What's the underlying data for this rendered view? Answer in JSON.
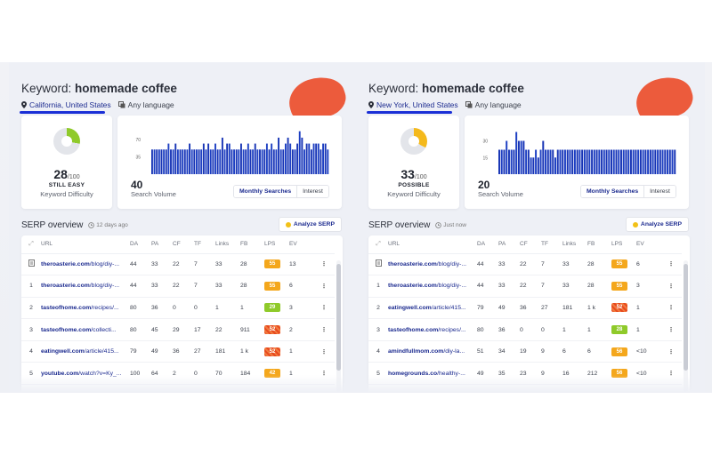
{
  "panels": [
    {
      "keyword_label": "Keyword:",
      "keyword": "homemade coffee",
      "location": "California, United States",
      "language": "Any language",
      "kd": {
        "score": "28",
        "max": "/100",
        "status": "STILL EASY",
        "label": "Keyword Difficulty",
        "fraction": 0.28,
        "color": "#8fca2a"
      },
      "sv": {
        "value": "40",
        "label": "Search Volume",
        "toggle": [
          "Monthly Searches",
          "Interest"
        ],
        "chart_data": {
          "type": "bar",
          "ylim": [
            0,
            90
          ],
          "yticks": [
            "70",
            "35"
          ],
          "ytick_values": [
            70,
            35
          ],
          "values": [
            50,
            50,
            50,
            50,
            50,
            50,
            50,
            62,
            50,
            50,
            62,
            50,
            50,
            50,
            50,
            50,
            62,
            50,
            50,
            50,
            50,
            50,
            62,
            50,
            62,
            50,
            50,
            62,
            50,
            50,
            74,
            50,
            62,
            62,
            50,
            50,
            50,
            50,
            62,
            50,
            50,
            62,
            50,
            50,
            62,
            50,
            50,
            50,
            50,
            62,
            50,
            62,
            50,
            50,
            74,
            50,
            50,
            62,
            74,
            62,
            50,
            50,
            62,
            87,
            74,
            50,
            62,
            62,
            50,
            62,
            62,
            62,
            50,
            62,
            62,
            50
          ]
        }
      },
      "serp": {
        "title": "SERP overview",
        "time": "12 days ago",
        "analyze": "Analyze SERP",
        "columns": [
          "URL",
          "DA",
          "PA",
          "CF",
          "TF",
          "Links",
          "FB",
          "LPS",
          "EV"
        ],
        "rows": [
          {
            "pos": "",
            "domain": "theroasterie.com",
            "path": "/blog/diy-...",
            "da": "44",
            "pa": "33",
            "cf": "22",
            "tf": "7",
            "links": "33",
            "fb": "28",
            "lps": "55",
            "lps_color": "orange",
            "ev": "13"
          },
          {
            "pos": "1",
            "domain": "theroasterie.com",
            "path": "/blog/diy-...",
            "da": "44",
            "pa": "33",
            "cf": "22",
            "tf": "7",
            "links": "33",
            "fb": "28",
            "lps": "55",
            "lps_color": "orange",
            "ev": "6"
          },
          {
            "pos": "2",
            "domain": "tasteofhome.com",
            "path": "/recipes/...",
            "da": "80",
            "pa": "36",
            "cf": "0",
            "tf": "0",
            "links": "1",
            "fb": "1",
            "lps": "29",
            "lps_color": "green",
            "ev": "3"
          },
          {
            "pos": "3",
            "domain": "tasteofhome.com",
            "path": "/collecti...",
            "da": "80",
            "pa": "45",
            "cf": "29",
            "tf": "17",
            "links": "22",
            "fb": "911",
            "lps": "52",
            "lps_color": "red",
            "ev": "2"
          },
          {
            "pos": "4",
            "domain": "eatingwell.com",
            "path": "/article/415...",
            "da": "79",
            "pa": "49",
            "cf": "36",
            "tf": "27",
            "links": "181",
            "fb": "1 k",
            "lps": "52",
            "lps_color": "red",
            "ev": "1"
          },
          {
            "pos": "5",
            "domain": "youtube.com",
            "path": "/watch?v=Ky_...",
            "da": "100",
            "pa": "64",
            "cf": "2",
            "tf": "0",
            "links": "70",
            "fb": "184",
            "lps": "42",
            "lps_color": "orange",
            "ev": "1"
          }
        ]
      }
    },
    {
      "keyword_label": "Keyword:",
      "keyword": "homemade coffee",
      "location": "New York, United States",
      "language": "Any language",
      "kd": {
        "score": "33",
        "max": "/100",
        "status": "POSSIBLE",
        "label": "Keyword Difficulty",
        "fraction": 0.33,
        "color": "#f4b91c"
      },
      "sv": {
        "value": "20",
        "label": "Search Volume",
        "toggle": [
          "Monthly Searches",
          "Interest"
        ],
        "chart_data": {
          "type": "bar",
          "ylim": [
            0,
            40
          ],
          "yticks": [
            "30",
            "15"
          ],
          "ytick_values": [
            30,
            15
          ],
          "values": [
            22,
            22,
            22,
            30,
            22,
            22,
            22,
            38,
            30,
            30,
            30,
            22,
            22,
            15,
            15,
            22,
            15,
            22,
            30,
            22,
            22,
            22,
            22,
            15,
            22,
            22,
            22,
            22,
            22,
            22,
            22,
            22,
            22,
            22,
            22,
            22,
            22,
            22,
            22,
            22,
            22,
            22,
            22,
            22,
            22,
            22,
            22,
            22,
            22,
            22,
            22,
            22,
            22,
            22,
            22,
            22,
            22,
            22,
            22,
            22,
            22,
            22,
            22,
            22,
            22,
            22,
            22,
            22,
            22,
            22,
            22,
            22,
            22
          ]
        }
      },
      "serp": {
        "title": "SERP overview",
        "time": "Just now",
        "analyze": "Analyze SERP",
        "columns": [
          "URL",
          "DA",
          "PA",
          "CF",
          "TF",
          "Links",
          "FB",
          "LPS",
          "EV"
        ],
        "rows": [
          {
            "pos": "",
            "domain": "theroasterie.com",
            "path": "/blog/diy-...",
            "da": "44",
            "pa": "33",
            "cf": "22",
            "tf": "7",
            "links": "33",
            "fb": "28",
            "lps": "55",
            "lps_color": "orange",
            "ev": "6"
          },
          {
            "pos": "1",
            "domain": "theroasterie.com",
            "path": "/blog/diy-...",
            "da": "44",
            "pa": "33",
            "cf": "22",
            "tf": "7",
            "links": "33",
            "fb": "28",
            "lps": "55",
            "lps_color": "orange",
            "ev": "3"
          },
          {
            "pos": "2",
            "domain": "eatingwell.com",
            "path": "/article/415...",
            "da": "79",
            "pa": "49",
            "cf": "36",
            "tf": "27",
            "links": "181",
            "fb": "1 k",
            "lps": "52",
            "lps_color": "red",
            "ev": "1"
          },
          {
            "pos": "3",
            "domain": "tasteofhome.com",
            "path": "/recipes/...",
            "da": "80",
            "pa": "36",
            "cf": "0",
            "tf": "0",
            "links": "1",
            "fb": "1",
            "lps": "28",
            "lps_color": "green",
            "ev": "1"
          },
          {
            "pos": "4",
            "domain": "amindfullmom.com",
            "path": "/diy-la...",
            "da": "51",
            "pa": "34",
            "cf": "19",
            "tf": "9",
            "links": "6",
            "fb": "6",
            "lps": "56",
            "lps_color": "orange",
            "ev": "<10"
          },
          {
            "pos": "5",
            "domain": "homegrounds.co",
            "path": "/healthy-...",
            "da": "49",
            "pa": "35",
            "cf": "23",
            "tf": "9",
            "links": "16",
            "fb": "212",
            "lps": "56",
            "lps_color": "orange",
            "ev": "<10"
          }
        ]
      }
    }
  ]
}
